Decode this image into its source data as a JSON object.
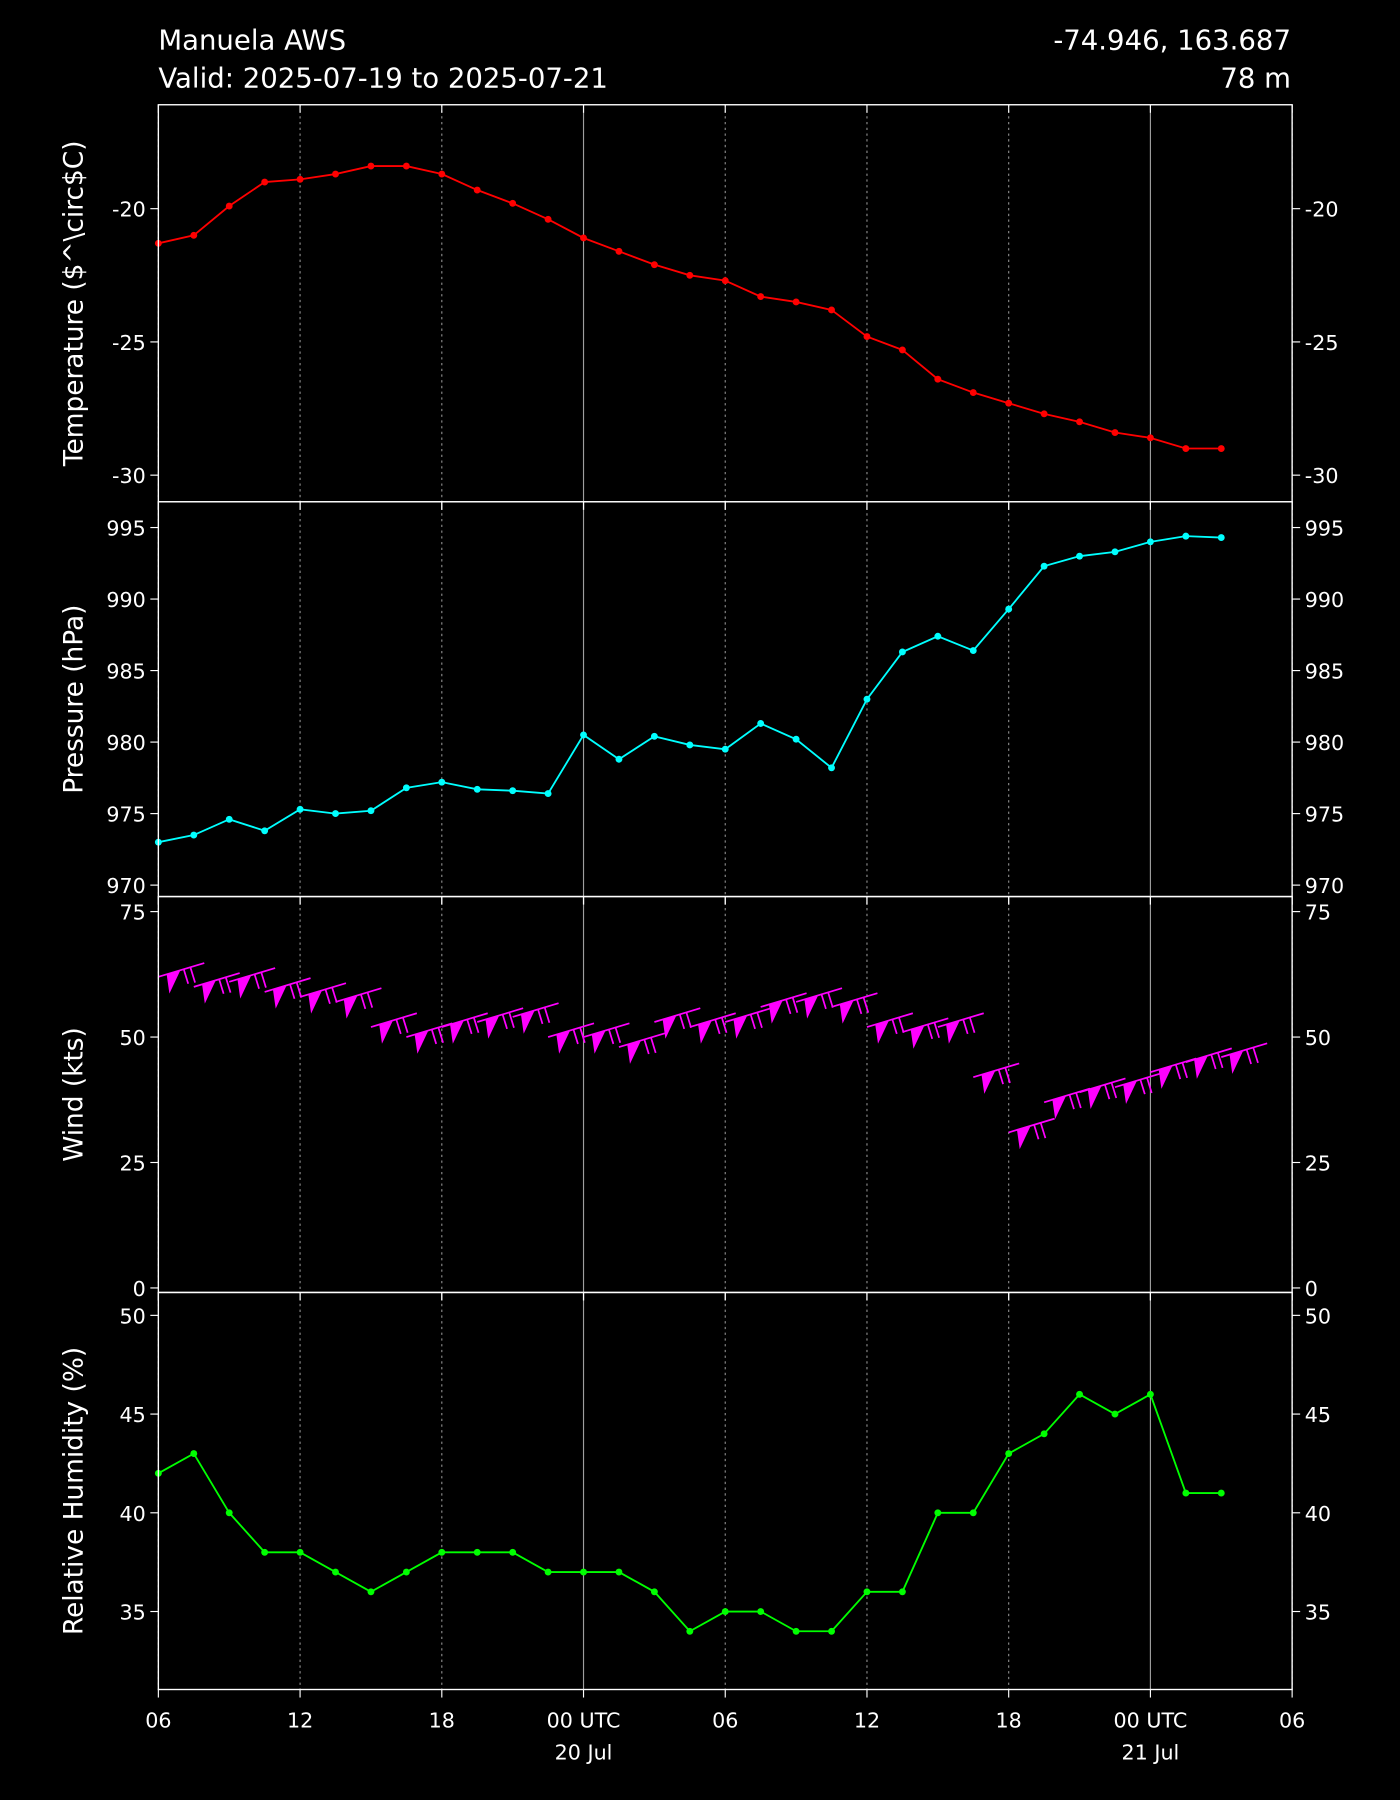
{
  "header": {
    "station": "Manuela AWS",
    "valid": "Valid: 2025-07-19 to 2025-07-21",
    "coords": "-74.946, 163.687",
    "elevation": "78 m"
  },
  "chart_data": [
    {
      "type": "line",
      "ylabel": "Temperature ($^\\circ$C)",
      "color": "#ff0000",
      "ylim": [
        -31,
        -16.1
      ],
      "yticks": [
        -30,
        -25,
        -20
      ],
      "xlim": [
        "2025-07-19T06:00",
        "2025-07-21T06:00"
      ],
      "xticks": [
        "2025-07-19T06:00",
        "2025-07-19T12:00",
        "2025-07-19T18:00",
        "2025-07-20T00:00",
        "2025-07-20T06:00",
        "2025-07-20T12:00",
        "2025-07-20T18:00",
        "2025-07-21T00:00",
        "2025-07-21T06:00"
      ],
      "x": [
        "2025-07-19T06:00",
        "2025-07-19T07:30",
        "2025-07-19T09:00",
        "2025-07-19T10:30",
        "2025-07-19T12:00",
        "2025-07-19T13:30",
        "2025-07-19T15:00",
        "2025-07-19T16:30",
        "2025-07-19T18:00",
        "2025-07-19T19:30",
        "2025-07-19T21:00",
        "2025-07-19T22:30",
        "2025-07-20T00:00",
        "2025-07-20T01:30",
        "2025-07-20T03:00",
        "2025-07-20T04:30",
        "2025-07-20T06:00",
        "2025-07-20T07:30",
        "2025-07-20T09:00",
        "2025-07-20T10:30",
        "2025-07-20T12:00",
        "2025-07-20T13:30",
        "2025-07-20T15:00",
        "2025-07-20T16:30",
        "2025-07-20T18:00",
        "2025-07-20T19:30",
        "2025-07-20T21:00",
        "2025-07-20T22:30",
        "2025-07-21T00:00",
        "2025-07-21T01:30",
        "2025-07-21T03:00"
      ],
      "values": [
        -21.3,
        -21.0,
        -19.9,
        -19.0,
        -18.9,
        -18.7,
        -18.4,
        -18.4,
        -18.7,
        -19.3,
        -19.8,
        -20.4,
        -21.1,
        -21.6,
        -22.1,
        -22.5,
        -22.7,
        -23.3,
        -23.5,
        -23.8,
        -24.8,
        -25.3,
        -26.4,
        -26.9,
        -27.3,
        -27.7,
        -28.0,
        -28.4,
        -28.6,
        -29.0,
        -29.0
      ]
    },
    {
      "type": "line",
      "ylabel": "Pressure (hPa)",
      "color": "#00ffff",
      "ylim": [
        969.2,
        996.8
      ],
      "yticks": [
        970,
        975,
        980,
        985,
        990,
        995
      ],
      "xlim": [
        "2025-07-19T06:00",
        "2025-07-21T06:00"
      ],
      "xticks": [
        "2025-07-19T06:00",
        "2025-07-19T12:00",
        "2025-07-19T18:00",
        "2025-07-20T00:00",
        "2025-07-20T06:00",
        "2025-07-20T12:00",
        "2025-07-20T18:00",
        "2025-07-21T00:00",
        "2025-07-21T06:00"
      ],
      "x": [
        "2025-07-19T06:00",
        "2025-07-19T07:30",
        "2025-07-19T09:00",
        "2025-07-19T10:30",
        "2025-07-19T12:00",
        "2025-07-19T13:30",
        "2025-07-19T15:00",
        "2025-07-19T16:30",
        "2025-07-19T18:00",
        "2025-07-19T19:30",
        "2025-07-19T21:00",
        "2025-07-19T22:30",
        "2025-07-20T00:00",
        "2025-07-20T01:30",
        "2025-07-20T03:00",
        "2025-07-20T04:30",
        "2025-07-20T06:00",
        "2025-07-20T07:30",
        "2025-07-20T09:00",
        "2025-07-20T10:30",
        "2025-07-20T12:00",
        "2025-07-20T13:30",
        "2025-07-20T15:00",
        "2025-07-20T16:30",
        "2025-07-20T18:00",
        "2025-07-20T19:30",
        "2025-07-20T21:00",
        "2025-07-20T22:30",
        "2025-07-21T00:00",
        "2025-07-21T01:30",
        "2025-07-21T03:00"
      ],
      "values": [
        973.0,
        973.5,
        974.6,
        973.8,
        975.3,
        975.0,
        975.2,
        976.8,
        977.2,
        976.7,
        976.6,
        976.4,
        980.5,
        978.8,
        980.4,
        979.8,
        979.5,
        981.3,
        980.2,
        978.2,
        983.0,
        986.3,
        987.4,
        986.4,
        989.3,
        992.3,
        993.0,
        993.3,
        994.0,
        994.4,
        994.3
      ]
    },
    {
      "type": "barb",
      "ylabel": "Wind (kts)",
      "color": "#ff00ff",
      "ylim": [
        -0.9,
        78
      ],
      "yticks": [
        0,
        25,
        50,
        75
      ],
      "xlim": [
        "2025-07-19T06:00",
        "2025-07-21T06:00"
      ],
      "xticks": [
        "2025-07-19T06:00",
        "2025-07-19T12:00",
        "2025-07-19T18:00",
        "2025-07-20T00:00",
        "2025-07-20T06:00",
        "2025-07-20T12:00",
        "2025-07-20T18:00",
        "2025-07-21T00:00",
        "2025-07-21T06:00"
      ],
      "x": [
        "2025-07-19T06:00",
        "2025-07-19T07:30",
        "2025-07-19T09:00",
        "2025-07-19T10:30",
        "2025-07-19T12:00",
        "2025-07-19T13:30",
        "2025-07-19T15:00",
        "2025-07-19T16:30",
        "2025-07-19T18:00",
        "2025-07-19T19:30",
        "2025-07-19T21:00",
        "2025-07-19T22:30",
        "2025-07-20T00:00",
        "2025-07-20T01:30",
        "2025-07-20T03:00",
        "2025-07-20T04:30",
        "2025-07-20T06:00",
        "2025-07-20T07:30",
        "2025-07-20T09:00",
        "2025-07-20T10:30",
        "2025-07-20T12:00",
        "2025-07-20T13:30",
        "2025-07-20T15:00",
        "2025-07-20T16:30",
        "2025-07-20T18:00",
        "2025-07-20T19:30",
        "2025-07-20T21:00",
        "2025-07-20T22:30",
        "2025-07-21T00:00",
        "2025-07-21T01:30",
        "2025-07-21T03:00"
      ],
      "values": [
        62,
        60,
        61,
        59,
        58,
        57,
        52,
        50,
        52,
        53,
        54,
        50,
        50,
        48,
        53,
        52,
        53,
        56,
        57,
        56,
        52,
        51,
        52,
        42,
        31,
        37,
        39,
        40,
        43,
        45,
        46
      ]
    },
    {
      "type": "line",
      "ylabel": "Relative Humidity (%)",
      "color": "#00ff00",
      "ylim": [
        31.05,
        51.16
      ],
      "yticks": [
        35,
        40,
        45,
        50
      ],
      "xlim": [
        "2025-07-19T06:00",
        "2025-07-21T06:00"
      ],
      "xticks": [
        {
          "value": "2025-07-19T06:00",
          "label": "06"
        },
        {
          "value": "2025-07-19T12:00",
          "label": "12"
        },
        {
          "value": "2025-07-19T18:00",
          "label": "18"
        },
        {
          "value": "2025-07-20T00:00",
          "label": "00 UTC\n20 Jul"
        },
        {
          "value": "2025-07-20T06:00",
          "label": "06"
        },
        {
          "value": "2025-07-20T12:00",
          "label": "12"
        },
        {
          "value": "2025-07-20T18:00",
          "label": "18"
        },
        {
          "value": "2025-07-21T00:00",
          "label": "00 UTC\n21 Jul"
        },
        {
          "value": "2025-07-21T06:00",
          "label": "06"
        }
      ],
      "x": [
        "2025-07-19T06:00",
        "2025-07-19T07:30",
        "2025-07-19T09:00",
        "2025-07-19T10:30",
        "2025-07-19T12:00",
        "2025-07-19T13:30",
        "2025-07-19T15:00",
        "2025-07-19T16:30",
        "2025-07-19T18:00",
        "2025-07-19T19:30",
        "2025-07-19T21:00",
        "2025-07-19T22:30",
        "2025-07-20T00:00",
        "2025-07-20T01:30",
        "2025-07-20T03:00",
        "2025-07-20T04:30",
        "2025-07-20T06:00",
        "2025-07-20T07:30",
        "2025-07-20T09:00",
        "2025-07-20T10:30",
        "2025-07-20T12:00",
        "2025-07-20T13:30",
        "2025-07-20T15:00",
        "2025-07-20T16:30",
        "2025-07-20T18:00",
        "2025-07-20T19:30",
        "2025-07-20T21:00",
        "2025-07-20T22:30",
        "2025-07-21T00:00",
        "2025-07-21T01:30",
        "2025-07-21T03:00"
      ],
      "values": [
        42,
        43,
        40,
        38,
        38,
        37,
        36,
        37,
        38,
        38,
        38,
        37,
        37,
        37,
        36,
        34,
        35,
        35,
        34,
        34,
        36,
        36,
        40,
        40,
        43,
        44,
        46,
        45,
        46,
        41,
        41
      ]
    }
  ]
}
